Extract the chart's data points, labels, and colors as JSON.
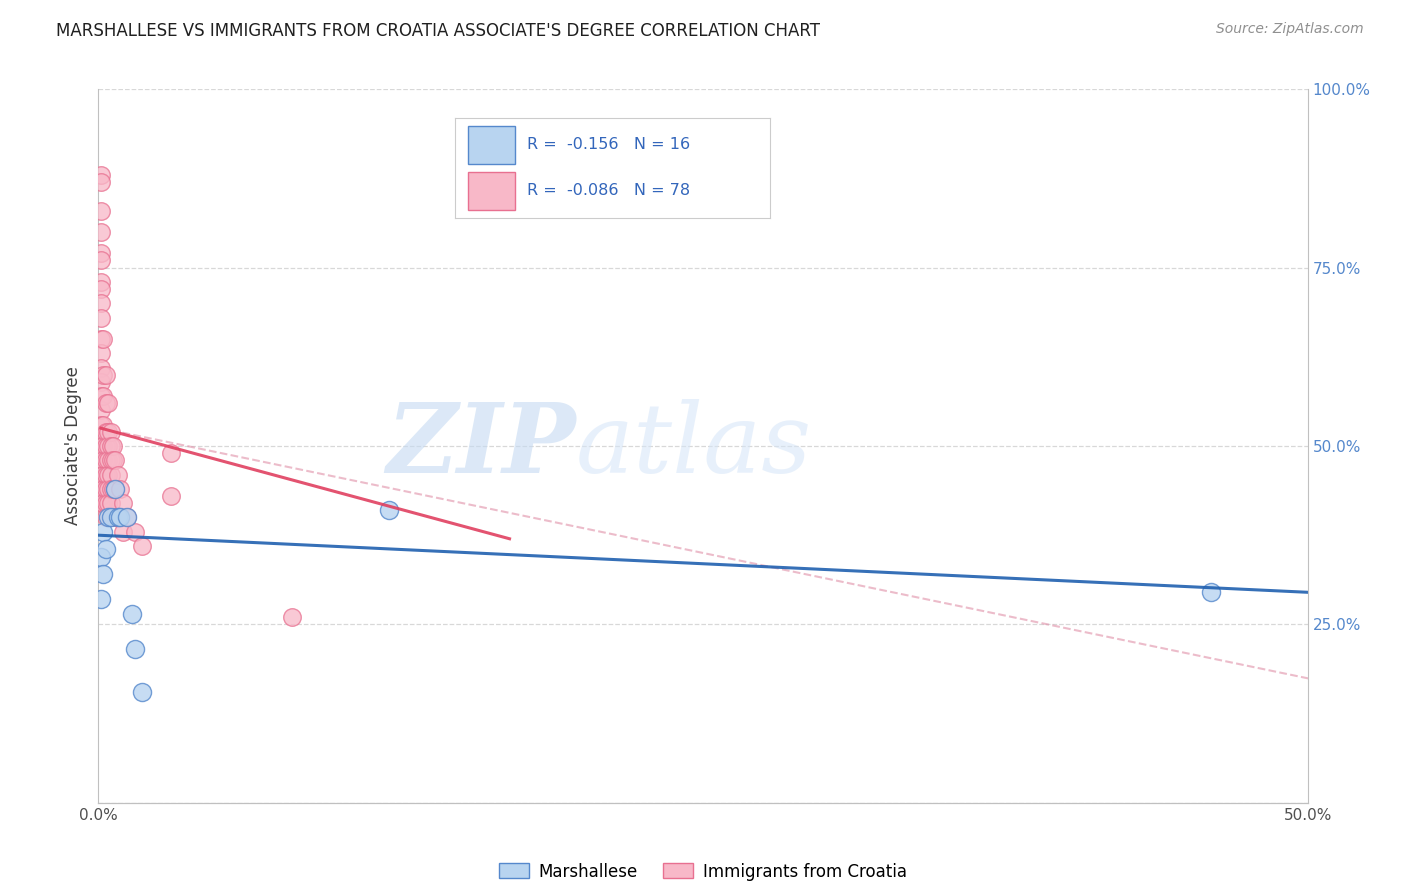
{
  "title": "MARSHALLESE VS IMMIGRANTS FROM CROATIA ASSOCIATE'S DEGREE CORRELATION CHART",
  "source": "Source: ZipAtlas.com",
  "ylabel_left": "Associate's Degree",
  "xlim": [
    0.0,
    0.5
  ],
  "ylim": [
    0.0,
    1.0
  ],
  "marshallese_points": {
    "x": [
      0.001,
      0.001,
      0.002,
      0.002,
      0.003,
      0.004,
      0.005,
      0.007,
      0.008,
      0.009,
      0.012,
      0.014,
      0.015,
      0.018,
      0.12,
      0.46
    ],
    "y": [
      0.345,
      0.285,
      0.38,
      0.32,
      0.355,
      0.4,
      0.4,
      0.44,
      0.4,
      0.4,
      0.4,
      0.265,
      0.215,
      0.155,
      0.41,
      0.295
    ]
  },
  "croatia_points": {
    "x": [
      0.001,
      0.001,
      0.001,
      0.001,
      0.001,
      0.001,
      0.001,
      0.001,
      0.001,
      0.001,
      0.001,
      0.001,
      0.001,
      0.001,
      0.001,
      0.001,
      0.001,
      0.001,
      0.001,
      0.001,
      0.001,
      0.001,
      0.001,
      0.001,
      0.001,
      0.001,
      0.001,
      0.002,
      0.002,
      0.002,
      0.002,
      0.002,
      0.002,
      0.002,
      0.002,
      0.002,
      0.003,
      0.003,
      0.003,
      0.003,
      0.003,
      0.003,
      0.003,
      0.003,
      0.003,
      0.004,
      0.004,
      0.004,
      0.004,
      0.004,
      0.004,
      0.004,
      0.005,
      0.005,
      0.005,
      0.005,
      0.005,
      0.005,
      0.005,
      0.006,
      0.006,
      0.006,
      0.006,
      0.007,
      0.007,
      0.007,
      0.008,
      0.008,
      0.009,
      0.009,
      0.01,
      0.01,
      0.012,
      0.015,
      0.018,
      0.03,
      0.03,
      0.08
    ],
    "y": [
      0.88,
      0.87,
      0.83,
      0.8,
      0.77,
      0.76,
      0.73,
      0.72,
      0.7,
      0.68,
      0.65,
      0.63,
      0.61,
      0.59,
      0.57,
      0.55,
      0.53,
      0.51,
      0.5,
      0.49,
      0.48,
      0.47,
      0.46,
      0.45,
      0.44,
      0.43,
      0.42,
      0.65,
      0.6,
      0.57,
      0.53,
      0.5,
      0.48,
      0.46,
      0.44,
      0.42,
      0.6,
      0.56,
      0.52,
      0.5,
      0.48,
      0.46,
      0.44,
      0.42,
      0.4,
      0.56,
      0.52,
      0.5,
      0.48,
      0.46,
      0.44,
      0.42,
      0.52,
      0.5,
      0.48,
      0.46,
      0.44,
      0.42,
      0.4,
      0.5,
      0.48,
      0.44,
      0.4,
      0.48,
      0.44,
      0.4,
      0.46,
      0.4,
      0.44,
      0.4,
      0.42,
      0.38,
      0.4,
      0.38,
      0.36,
      0.49,
      0.43,
      0.26
    ]
  },
  "blue_line": {
    "x": [
      0.0,
      0.5
    ],
    "y": [
      0.375,
      0.295
    ]
  },
  "pink_solid_line": {
    "x": [
      0.001,
      0.17
    ],
    "y": [
      0.525,
      0.37
    ]
  },
  "pink_dashed_line": {
    "x": [
      0.001,
      0.72
    ],
    "y": [
      0.525,
      0.02
    ]
  },
  "background_color": "#ffffff",
  "grid_color": "#d8d8d8",
  "blue_scatter_face": "#b8d4f0",
  "blue_scatter_edge": "#5588cc",
  "pink_scatter_face": "#f8b8c8",
  "pink_scatter_edge": "#e87090",
  "blue_line_color": "#2060b0",
  "pink_line_color": "#e04060",
  "pink_dash_color": "#e090a8"
}
